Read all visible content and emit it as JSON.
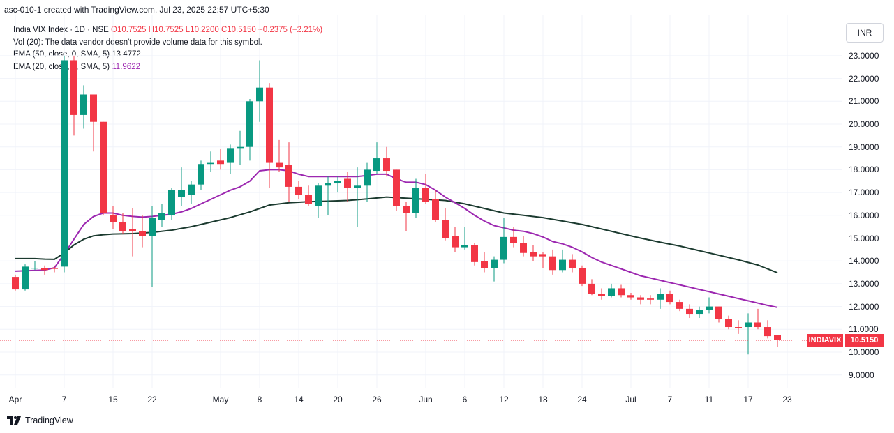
{
  "header": {
    "title": "asc-010-1 created with TradingView.com, Jul 23, 2025 22:57 UTC+5:30"
  },
  "legend": {
    "symbol": "India VIX Index · 1D · NSE",
    "ohlc": "O10.7525  H10.7525  L10.2200  C10.5150  −0.2375 (−2.21%)",
    "vol": "Vol (20): The data vendor doesn't provide volume data for this symbol.",
    "ema50_label": "EMA (50, close, 0, SMA, 5)",
    "ema50_value": "13.4772",
    "ema20_label": "EMA (20, close, 0, SMA, 5)",
    "ema20_value": "11.9622"
  },
  "currency_button": "INR",
  "price_tag": {
    "symbol": "INDIAVIX",
    "value": "10.5150"
  },
  "footer": {
    "brand": "TradingView"
  },
  "colors": {
    "up": "#089981",
    "down": "#f23645",
    "ema20": "#9c27b0",
    "ema50": "#1b3a2f"
  },
  "chart_data": {
    "type": "candlestick",
    "y_ticks": [
      "23.0000",
      "22.0000",
      "21.0000",
      "20.0000",
      "19.0000",
      "18.0000",
      "17.0000",
      "16.0000",
      "15.0000",
      "14.0000",
      "13.0000",
      "12.0000",
      "11.0000",
      "10.0000",
      "9.0000"
    ],
    "x_ticks": [
      {
        "label": "Apr",
        "i": 0
      },
      {
        "label": "7",
        "i": 5
      },
      {
        "label": "15",
        "i": 10
      },
      {
        "label": "22",
        "i": 14
      },
      {
        "label": "May",
        "i": 21
      },
      {
        "label": "8",
        "i": 25
      },
      {
        "label": "14",
        "i": 29
      },
      {
        "label": "20",
        "i": 33
      },
      {
        "label": "26",
        "i": 37
      },
      {
        "label": "Jun",
        "i": 42
      },
      {
        "label": "6",
        "i": 46
      },
      {
        "label": "12",
        "i": 50
      },
      {
        "label": "18",
        "i": 54
      },
      {
        "label": "24",
        "i": 58
      },
      {
        "label": "Jul",
        "i": 63
      },
      {
        "label": "7",
        "i": 67
      },
      {
        "label": "11",
        "i": 71
      },
      {
        "label": "17",
        "i": 75
      },
      {
        "label": "23",
        "i": 79
      }
    ],
    "candles": [
      [
        13.3,
        13.4,
        12.7,
        12.75
      ],
      [
        12.75,
        13.85,
        12.7,
        13.75
      ],
      [
        13.7,
        14.0,
        13.6,
        13.7
      ],
      [
        13.7,
        13.8,
        13.4,
        13.6
      ],
      [
        13.7,
        13.8,
        13.5,
        13.65
      ],
      [
        13.75,
        23.0,
        13.5,
        22.8
      ],
      [
        22.8,
        23.0,
        19.5,
        20.4
      ],
      [
        20.4,
        21.7,
        19.8,
        21.3
      ],
      [
        21.3,
        21.3,
        18.8,
        20.1
      ],
      [
        20.1,
        20.1,
        16.0,
        16.1
      ],
      [
        16.0,
        16.4,
        15.4,
        15.7
      ],
      [
        15.7,
        16.1,
        15.2,
        15.3
      ],
      [
        15.4,
        16.3,
        14.2,
        15.3
      ],
      [
        15.3,
        16.0,
        14.6,
        15.1
      ],
      [
        15.1,
        16.4,
        12.85,
        15.9
      ],
      [
        15.8,
        16.5,
        15.5,
        16.1
      ],
      [
        16.0,
        17.2,
        15.8,
        17.1
      ],
      [
        16.8,
        18.1,
        16.4,
        17.1
      ],
      [
        16.9,
        17.5,
        16.5,
        17.35
      ],
      [
        17.35,
        18.4,
        17.1,
        18.25
      ],
      [
        18.25,
        18.8,
        17.9,
        18.3
      ],
      [
        18.4,
        18.9,
        18.0,
        18.25
      ],
      [
        18.3,
        19.1,
        17.8,
        18.95
      ],
      [
        18.95,
        19.7,
        18.2,
        19.0
      ],
      [
        19.0,
        21.1,
        18.4,
        21.0
      ],
      [
        21.0,
        22.8,
        20.1,
        21.6
      ],
      [
        21.6,
        21.8,
        17.2,
        18.3
      ],
      [
        18.3,
        19.3,
        17.9,
        18.1
      ],
      [
        18.2,
        19.2,
        16.6,
        17.25
      ],
      [
        17.25,
        17.5,
        16.7,
        16.9
      ],
      [
        16.9,
        17.3,
        16.4,
        16.5
      ],
      [
        16.4,
        17.4,
        15.9,
        17.3
      ],
      [
        17.3,
        17.7,
        16.0,
        17.4
      ],
      [
        17.4,
        17.7,
        17.0,
        17.5
      ],
      [
        17.6,
        17.9,
        16.6,
        17.2
      ],
      [
        17.2,
        18.1,
        15.5,
        17.3
      ],
      [
        17.3,
        18.3,
        16.6,
        18.0
      ],
      [
        17.95,
        19.2,
        17.8,
        18.5
      ],
      [
        18.5,
        19.0,
        17.7,
        17.95
      ],
      [
        18.0,
        18.0,
        16.2,
        16.4
      ],
      [
        16.4,
        16.6,
        15.3,
        16.1
      ],
      [
        16.1,
        17.6,
        15.9,
        17.2
      ],
      [
        17.2,
        17.8,
        16.5,
        16.6
      ],
      [
        16.7,
        17.1,
        15.7,
        15.8
      ],
      [
        15.8,
        16.3,
        14.9,
        15.0
      ],
      [
        15.1,
        15.5,
        14.4,
        14.6
      ],
      [
        14.6,
        15.5,
        14.5,
        14.7
      ],
      [
        14.7,
        14.8,
        13.8,
        13.95
      ],
      [
        14.0,
        14.4,
        13.5,
        13.7
      ],
      [
        13.7,
        14.2,
        13.1,
        14.05
      ],
      [
        14.05,
        15.9,
        13.9,
        15.05
      ],
      [
        15.05,
        15.5,
        14.6,
        14.8
      ],
      [
        14.8,
        15.1,
        14.2,
        14.35
      ],
      [
        14.4,
        14.7,
        14.0,
        14.2
      ],
      [
        14.3,
        14.4,
        13.7,
        14.2
      ],
      [
        14.2,
        14.5,
        13.4,
        13.6
      ],
      [
        13.6,
        14.5,
        13.5,
        14.05
      ],
      [
        14.05,
        14.3,
        13.5,
        13.7
      ],
      [
        13.7,
        13.8,
        12.9,
        13.0
      ],
      [
        13.0,
        13.2,
        12.5,
        12.55
      ],
      [
        12.55,
        12.8,
        12.3,
        12.45
      ],
      [
        12.45,
        13.0,
        12.4,
        12.8
      ],
      [
        12.8,
        12.95,
        12.4,
        12.5
      ],
      [
        12.5,
        12.6,
        12.3,
        12.4
      ],
      [
        12.4,
        12.5,
        12.1,
        12.3
      ],
      [
        12.35,
        12.5,
        12.1,
        12.3
      ],
      [
        12.3,
        12.8,
        11.9,
        12.55
      ],
      [
        12.55,
        12.7,
        12.1,
        12.2
      ],
      [
        12.2,
        12.3,
        11.8,
        11.9
      ],
      [
        11.9,
        12.1,
        11.5,
        11.65
      ],
      [
        11.65,
        12.0,
        11.5,
        11.85
      ],
      [
        11.85,
        12.4,
        11.7,
        12.0
      ],
      [
        12.0,
        12.0,
        11.3,
        11.45
      ],
      [
        11.45,
        11.6,
        11.0,
        11.1
      ],
      [
        11.1,
        11.4,
        10.8,
        11.05
      ],
      [
        11.1,
        11.7,
        9.9,
        11.3
      ],
      [
        11.3,
        11.9,
        11.0,
        11.1
      ],
      [
        11.1,
        11.4,
        10.6,
        10.7
      ],
      [
        10.75,
        10.75,
        10.22,
        10.52
      ]
    ],
    "ema20": [
      [
        0,
        13.55
      ],
      [
        3,
        13.6
      ],
      [
        4,
        13.7
      ],
      [
        5,
        14.3
      ],
      [
        6,
        14.95
      ],
      [
        7,
        15.6
      ],
      [
        8,
        15.95
      ],
      [
        9,
        16.1
      ],
      [
        10,
        16.1
      ],
      [
        11,
        16.0
      ],
      [
        12,
        15.95
      ],
      [
        13,
        15.92
      ],
      [
        14,
        15.95
      ],
      [
        15,
        16.0
      ],
      [
        16,
        16.05
      ],
      [
        17,
        16.15
      ],
      [
        18,
        16.3
      ],
      [
        19,
        16.5
      ],
      [
        20,
        16.7
      ],
      [
        21,
        16.9
      ],
      [
        22,
        17.1
      ],
      [
        23,
        17.25
      ],
      [
        24,
        17.5
      ],
      [
        25,
        17.95
      ],
      [
        26,
        18.0
      ],
      [
        27,
        18.0
      ],
      [
        28,
        17.95
      ],
      [
        29,
        17.8
      ],
      [
        30,
        17.7
      ],
      [
        31,
        17.7
      ],
      [
        32,
        17.7
      ],
      [
        33,
        17.7
      ],
      [
        34,
        17.7
      ],
      [
        35,
        17.7
      ],
      [
        36,
        17.75
      ],
      [
        37,
        17.8
      ],
      [
        38,
        17.8
      ],
      [
        39,
        17.6
      ],
      [
        40,
        17.45
      ],
      [
        41,
        17.45
      ],
      [
        42,
        17.35
      ],
      [
        43,
        17.1
      ],
      [
        44,
        16.8
      ],
      [
        45,
        16.55
      ],
      [
        46,
        16.3
      ],
      [
        47,
        16.0
      ],
      [
        48,
        15.75
      ],
      [
        49,
        15.55
      ],
      [
        50,
        15.45
      ],
      [
        51,
        15.35
      ],
      [
        52,
        15.3
      ],
      [
        53,
        15.2
      ],
      [
        54,
        15.05
      ],
      [
        55,
        14.85
      ],
      [
        56,
        14.75
      ],
      [
        57,
        14.6
      ],
      [
        58,
        14.4
      ],
      [
        59,
        14.15
      ],
      [
        60,
        13.95
      ],
      [
        61,
        13.8
      ],
      [
        62,
        13.65
      ],
      [
        63,
        13.5
      ],
      [
        64,
        13.35
      ],
      [
        65,
        13.25
      ],
      [
        66,
        13.15
      ],
      [
        67,
        13.05
      ],
      [
        68,
        12.95
      ],
      [
        69,
        12.85
      ],
      [
        70,
        12.75
      ],
      [
        71,
        12.65
      ],
      [
        72,
        12.55
      ],
      [
        73,
        12.45
      ],
      [
        74,
        12.35
      ],
      [
        75,
        12.25
      ],
      [
        76,
        12.15
      ],
      [
        77,
        12.05
      ],
      [
        78,
        11.96
      ]
    ],
    "ema50": [
      [
        0,
        14.1
      ],
      [
        1,
        14.1
      ],
      [
        2,
        14.1
      ],
      [
        3,
        14.08
      ],
      [
        4,
        14.07
      ],
      [
        5,
        14.35
      ],
      [
        6,
        14.7
      ],
      [
        7,
        14.95
      ],
      [
        8,
        15.1
      ],
      [
        9,
        15.15
      ],
      [
        10,
        15.18
      ],
      [
        12,
        15.2
      ],
      [
        14,
        15.25
      ],
      [
        16,
        15.35
      ],
      [
        18,
        15.5
      ],
      [
        20,
        15.7
      ],
      [
        22,
        15.9
      ],
      [
        24,
        16.15
      ],
      [
        25,
        16.3
      ],
      [
        26,
        16.45
      ],
      [
        28,
        16.55
      ],
      [
        30,
        16.6
      ],
      [
        32,
        16.62
      ],
      [
        34,
        16.65
      ],
      [
        36,
        16.72
      ],
      [
        38,
        16.8
      ],
      [
        40,
        16.75
      ],
      [
        42,
        16.7
      ],
      [
        44,
        16.65
      ],
      [
        46,
        16.5
      ],
      [
        48,
        16.3
      ],
      [
        50,
        16.1
      ],
      [
        52,
        16.0
      ],
      [
        54,
        15.9
      ],
      [
        56,
        15.75
      ],
      [
        58,
        15.6
      ],
      [
        60,
        15.4
      ],
      [
        62,
        15.2
      ],
      [
        64,
        15.0
      ],
      [
        66,
        14.82
      ],
      [
        68,
        14.65
      ],
      [
        70,
        14.45
      ],
      [
        72,
        14.25
      ],
      [
        74,
        14.05
      ],
      [
        76,
        13.82
      ],
      [
        78,
        13.48
      ]
    ]
  }
}
